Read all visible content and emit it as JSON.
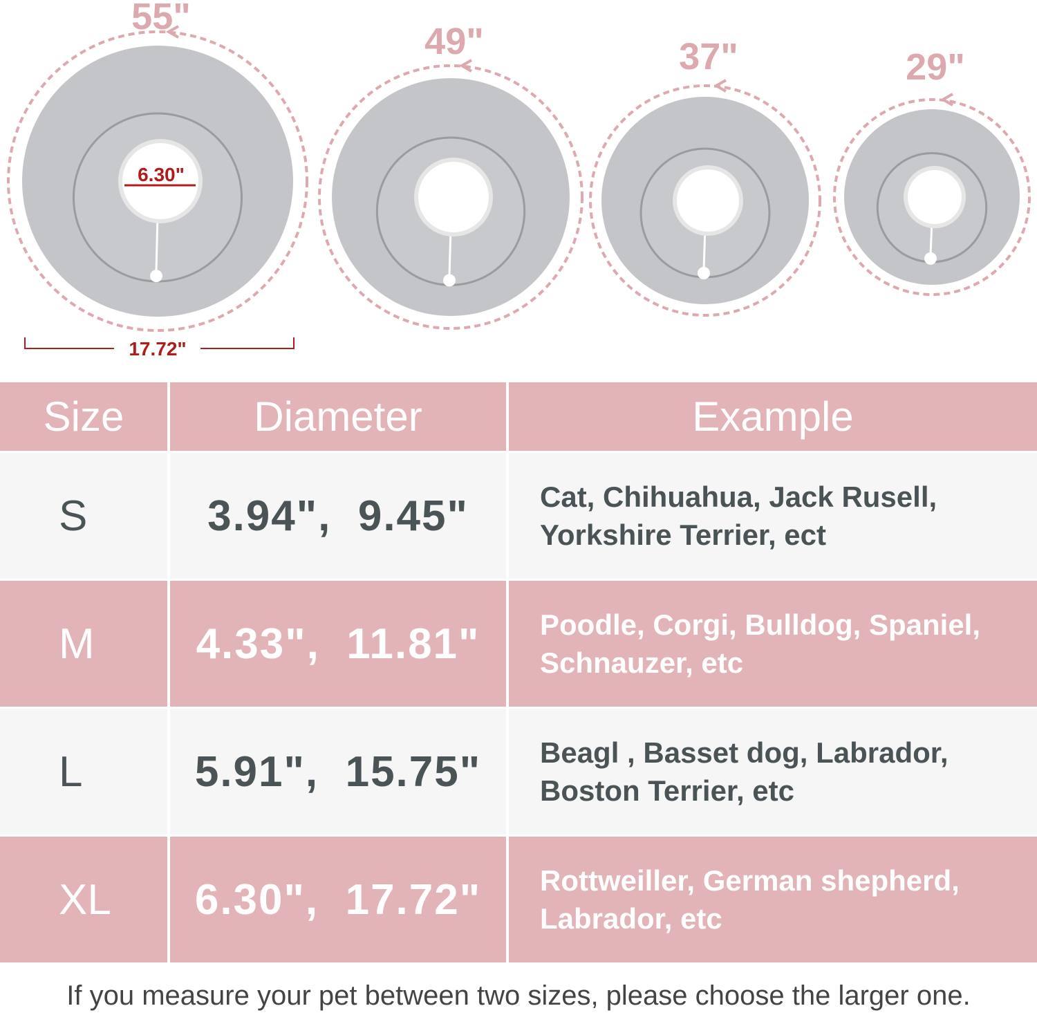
{
  "collars": [
    {
      "circumference": "55\""
    },
    {
      "circumference": "49\""
    },
    {
      "circumference": "37\""
    },
    {
      "circumference": "29\""
    }
  ],
  "xl_inner_diameter": "6.30\"",
  "xl_outer_diameter": "17.72\"",
  "colors": {
    "header_pink": "#e2b4b7",
    "row_light": "#f6f6f7",
    "text_dark": "#4a5355",
    "dimension_red": "#b01c1c",
    "dashed_pink": "#dcaaae",
    "collar_gray": "#c4c5c8"
  },
  "table": {
    "headers": [
      "Size",
      "Diameter",
      "Example"
    ],
    "rows": [
      {
        "size": "S",
        "diameter": "3.94\",  9.45\"",
        "example": [
          "Cat, Chihuahua, Jack Rusell,",
          "Yorkshire Terrier, ect"
        ]
      },
      {
        "size": "M",
        "diameter": "4.33\",  11.81\"",
        "example": [
          "Poodle, Corgi, Bulldog, Spaniel,",
          "Schnauzer, etc"
        ]
      },
      {
        "size": "L",
        "diameter": "5.91\",  15.75\"",
        "example": [
          "Beagl , Basset dog, Labrador,",
          "Boston Terrier, etc"
        ]
      },
      {
        "size": "XL",
        "diameter": "6.30\",  17.72\"",
        "example": [
          "Rottweiller, German shepherd,",
          "Labrador, etc"
        ]
      }
    ]
  },
  "footer": "If you measure your pet between two sizes, please choose the larger one."
}
